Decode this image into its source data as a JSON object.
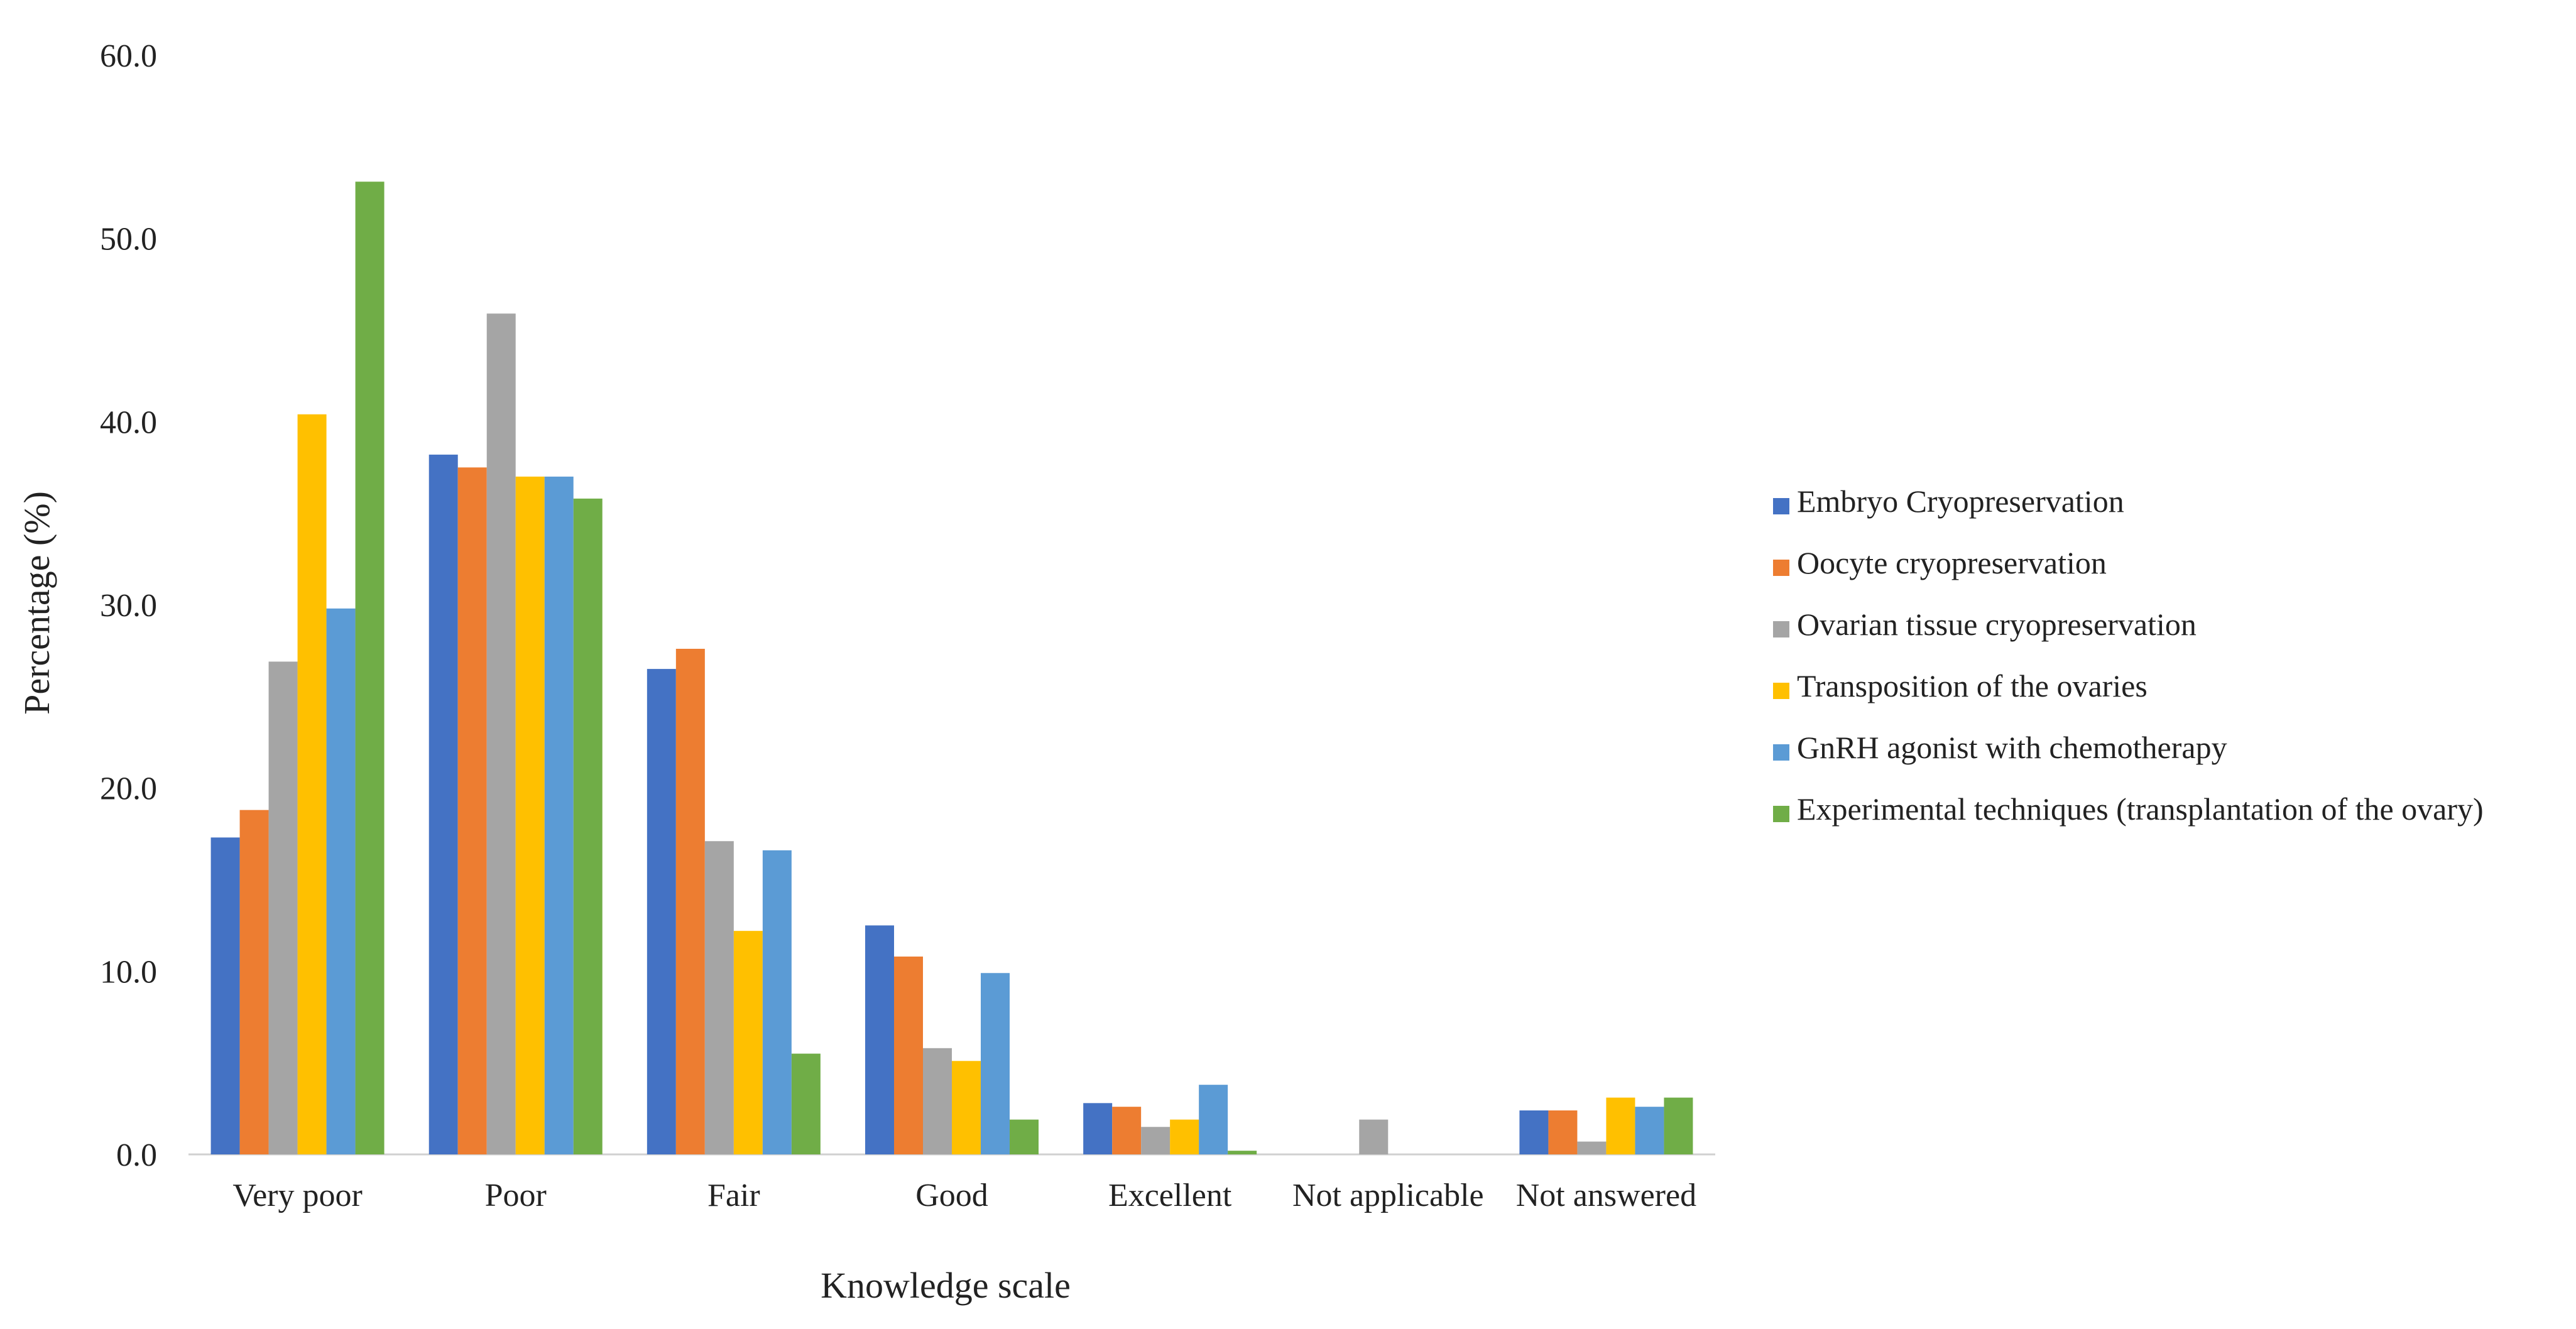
{
  "chart_data": {
    "type": "bar",
    "title": "",
    "xlabel": "Knowledge scale",
    "ylabel": "Percentage (%)",
    "ylim": [
      0,
      60
    ],
    "yticks": [
      "0.0",
      "10.0",
      "20.0",
      "30.0",
      "40.0",
      "50.0",
      "60.0"
    ],
    "grid": false,
    "legend_position": "right",
    "categories": [
      "Very poor",
      "Poor",
      "Fair",
      "Good",
      "Excellent",
      "Not applicable",
      "Not answered"
    ],
    "series": [
      {
        "name": "Embryo Cryopreservation",
        "color": "#4472c4",
        "values": [
          17.3,
          38.2,
          26.5,
          12.5,
          2.8,
          0.0,
          2.4
        ]
      },
      {
        "name": "Oocyte cryopreservation",
        "color": "#ed7d31",
        "values": [
          18.8,
          37.5,
          27.6,
          10.8,
          2.6,
          0.0,
          2.4
        ]
      },
      {
        "name": "Ovarian tissue cryopreservation",
        "color": "#a5a5a5",
        "values": [
          26.9,
          45.9,
          17.1,
          5.8,
          1.5,
          1.9,
          0.7
        ]
      },
      {
        "name": "Transposition of the ovaries",
        "color": "#ffc000",
        "values": [
          40.4,
          37.0,
          12.2,
          5.1,
          1.9,
          0.0,
          3.1
        ]
      },
      {
        "name": "GnRH agonist with chemotherapy",
        "color": "#5b9bd5",
        "values": [
          29.8,
          37.0,
          16.6,
          9.9,
          3.8,
          0.0,
          2.6
        ]
      },
      {
        "name": "Experimental techniques (transplantation of the ovary)",
        "color": "#70ad47",
        "values": [
          53.1,
          35.8,
          5.5,
          1.9,
          0.2,
          0.0,
          3.1
        ]
      }
    ]
  }
}
